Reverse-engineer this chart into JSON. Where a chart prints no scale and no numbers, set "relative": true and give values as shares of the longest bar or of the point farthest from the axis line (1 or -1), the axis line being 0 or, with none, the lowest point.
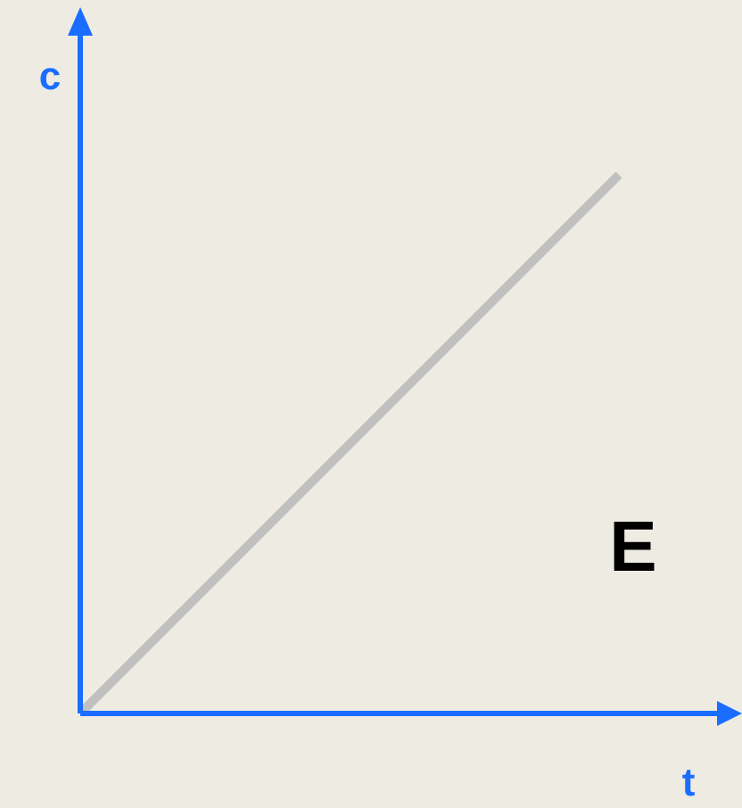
{
  "chart_data": {
    "type": "line",
    "relative": true,
    "xlabel": "t",
    "ylabel": "c",
    "annotations": [
      "E"
    ],
    "categories": [
      null,
      null
    ],
    "series": [
      {
        "color": "#c0c0c0",
        "values": [
          0,
          1
        ]
      }
    ]
  }
}
